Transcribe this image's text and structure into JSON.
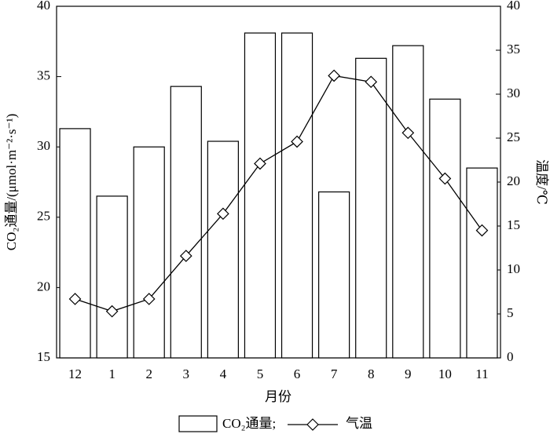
{
  "chart_data": {
    "type": "bar_line",
    "x_label": "月份",
    "y_label": "CO₂通量/(μmol·m⁻²·s⁻¹)",
    "y2_label": "温度/℃",
    "categories": [
      "12",
      "1",
      "2",
      "3",
      "4",
      "5",
      "6",
      "7",
      "8",
      "9",
      "10",
      "11"
    ],
    "series": [
      {
        "name": "CO₂通量",
        "type": "bar",
        "color": "#ffffff",
        "values": [
          31.3,
          26.5,
          30.0,
          34.3,
          30.4,
          38.1,
          38.1,
          26.8,
          36.3,
          37.2,
          33.4,
          28.5
        ]
      },
      {
        "name": "气温",
        "type": "line",
        "axis": "y2",
        "color": "#000000",
        "values": [
          6.7,
          5.3,
          6.7,
          11.6,
          16.4,
          22.1,
          24.6,
          32.1,
          31.4,
          25.6,
          20.4,
          14.5
        ]
      }
    ],
    "legend_separator": ";",
    "ylim": [
      15,
      40
    ],
    "yticks": [
      15,
      20,
      25,
      30,
      35,
      40
    ],
    "y2lim": [
      0,
      40
    ],
    "y2ticks": [
      0,
      5,
      10,
      15,
      20,
      25,
      30,
      35,
      40
    ],
    "legend": "bottom",
    "grid": false
  }
}
